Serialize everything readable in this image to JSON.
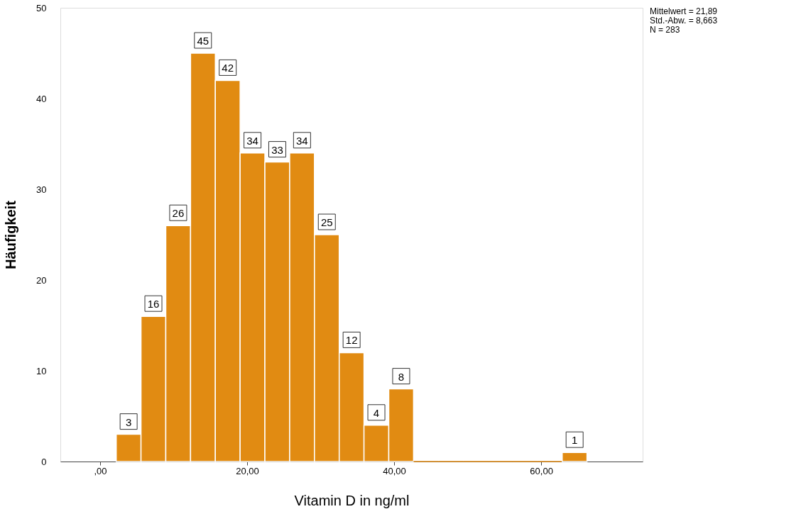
{
  "chart_data": {
    "type": "histogram",
    "xlabel": "Vitamin D in ng/ml",
    "ylabel": "Häufigkeit",
    "bins": [
      2.2,
      5.57,
      8.94,
      12.31,
      15.68,
      19.05,
      22.42,
      25.79,
      29.16,
      32.53,
      35.9,
      39.27,
      42.64,
      46.01,
      49.38,
      52.75,
      56.12,
      59.49,
      62.86,
      66.23
    ],
    "values": [
      3,
      16,
      26,
      45,
      42,
      34,
      33,
      34,
      25,
      12,
      4,
      8,
      0,
      0,
      0,
      0,
      0,
      0,
      1
    ],
    "value_labels": [
      "3",
      "16",
      "26",
      "45",
      "42",
      "34",
      "33",
      "34",
      "25",
      "12",
      "4",
      "8",
      null,
      null,
      null,
      null,
      null,
      null,
      "1"
    ],
    "color": "#e18b12",
    "xlim": [
      -5.4,
      73.8
    ],
    "xticks": [
      {
        "value": 0,
        "label": ",00"
      },
      {
        "value": 20,
        "label": "20,00"
      },
      {
        "value": 40,
        "label": "40,00"
      },
      {
        "value": 60,
        "label": "60,00"
      }
    ],
    "ylim": [
      0,
      50
    ],
    "yticks": [
      0,
      10,
      20,
      30,
      40,
      50
    ],
    "grid": false,
    "annotations": [
      "Mittelwert = 21,89",
      "Std.-Abw. = 8,663",
      "N = 283"
    ]
  }
}
